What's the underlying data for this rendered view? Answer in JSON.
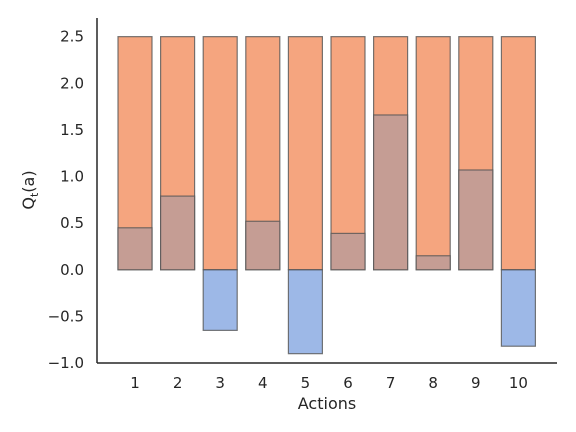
{
  "chart_data": {
    "type": "bar",
    "categories": [
      "1",
      "2",
      "3",
      "4",
      "5",
      "6",
      "7",
      "8",
      "9",
      "10"
    ],
    "series": [
      {
        "values": [
          2.5,
          2.5,
          2.5,
          2.5,
          2.5,
          2.5,
          2.5,
          2.5,
          2.5,
          2.5
        ],
        "color": "#f5a57f"
      },
      {
        "values": [
          0.45,
          0.79,
          -0.65,
          0.52,
          -0.9,
          0.39,
          1.66,
          0.15,
          1.07,
          -0.82
        ],
        "color": "#4c7ed4"
      }
    ],
    "overlap_color": "#c59d94",
    "xlabel": "Actions",
    "ylabel": "Q_t(a)",
    "ylim": [
      -1.0,
      2.7
    ],
    "yticks": [
      -1.0,
      -0.5,
      0.0,
      0.5,
      1.0,
      1.5,
      2.0,
      2.5
    ],
    "ytick_labels": [
      "−1.0",
      "−0.5",
      "0.0",
      "0.5",
      "1.0",
      "1.5",
      "2.0",
      "2.5"
    ],
    "grid": false,
    "legend": "none"
  }
}
